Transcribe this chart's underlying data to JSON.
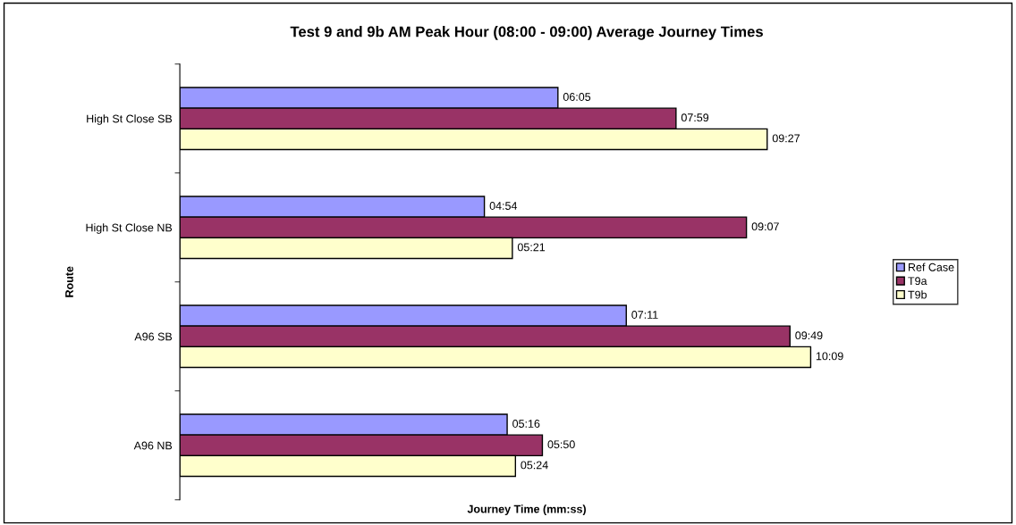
{
  "chart_data": {
    "type": "bar",
    "orientation": "horizontal",
    "title": "Test 9 and 9b AM Peak Hour (08:00 - 09:00) Average Journey Times",
    "xlabel": "Journey Time (mm:ss)",
    "ylabel": "Route",
    "categories": [
      "High St Close SB",
      "High St Close NB",
      "A96 SB",
      "A96 NB"
    ],
    "series": [
      {
        "name": "Ref Case",
        "color": "#9999ff",
        "values": [
          6.0833,
          4.9,
          7.1833,
          5.2667
        ],
        "value_labels": [
          "06:05",
          "04:54",
          "07:11",
          "05:16"
        ]
      },
      {
        "name": "T9a",
        "color": "#993366",
        "values": [
          7.9833,
          9.1167,
          9.8167,
          5.8333
        ],
        "value_labels": [
          "07:59",
          "09:07",
          "09:49",
          "05:50"
        ]
      },
      {
        "name": "T9b",
        "color": "#ffffcc",
        "values": [
          9.45,
          5.35,
          10.15,
          5.4
        ],
        "value_labels": [
          "09:27",
          "05:21",
          "10:09",
          "05:24"
        ]
      }
    ],
    "legend": "right",
    "grid": false
  }
}
